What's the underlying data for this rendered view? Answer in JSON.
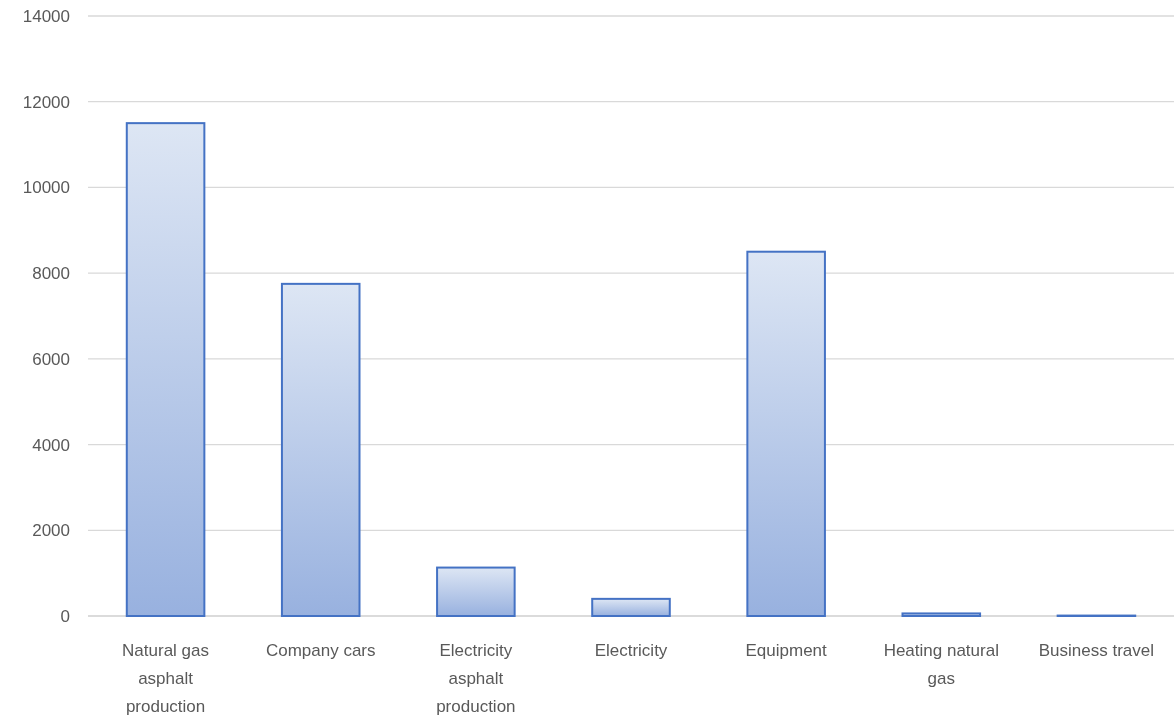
{
  "chart_data": {
    "type": "bar",
    "categories": [
      "Natural gas asphalt production",
      "Company cars",
      "Electricity asphalt production",
      "Electricity",
      "Equipment",
      "Heating natural gas",
      "Business travel"
    ],
    "values": [
      11500,
      7750,
      1130,
      400,
      8500,
      60,
      10
    ],
    "color": "#4472c4",
    "ylim": [
      0,
      14000
    ],
    "yticks": [
      0,
      2000,
      4000,
      6000,
      8000,
      10000,
      12000,
      14000
    ],
    "grid": "y"
  }
}
